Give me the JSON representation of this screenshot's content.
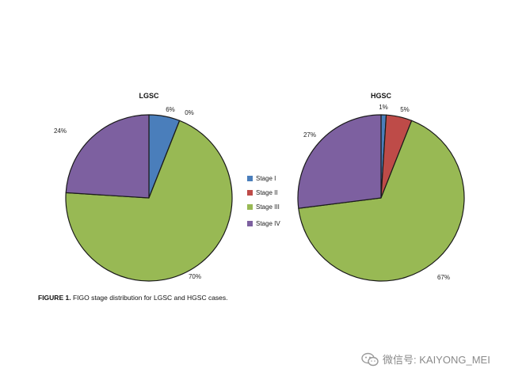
{
  "chart_data": [
    {
      "type": "pie",
      "title": "LGSC",
      "categories": [
        "Stage I",
        "Stage II",
        "Stage III",
        "Stage IV"
      ],
      "values": [
        6,
        0,
        70,
        24
      ],
      "labels": [
        "6%",
        "0%",
        "70%",
        "24%"
      ]
    },
    {
      "type": "pie",
      "title": "HGSC",
      "categories": [
        "Stage I",
        "Stage II",
        "Stage III",
        "Stage IV"
      ],
      "values": [
        1,
        5,
        67,
        27
      ],
      "labels": [
        "1%",
        "5%",
        "67%",
        "27%"
      ]
    }
  ],
  "legend": {
    "placement": "center",
    "items": [
      {
        "label": "Stage I",
        "color": "#4a7ebb"
      },
      {
        "label": "Stage II",
        "color": "#be4b48"
      },
      {
        "label": "Stage III",
        "color": "#98b954"
      },
      {
        "label": "Stage IV",
        "color": "#7d60a0"
      }
    ]
  },
  "caption": {
    "label": "FIGURE 1.",
    "text": "FIGO stage distribution for LGSC and HGSC cases."
  },
  "watermark": {
    "text": "微信号: KAIYONG_MEI",
    "icon": "wechat-icon"
  }
}
